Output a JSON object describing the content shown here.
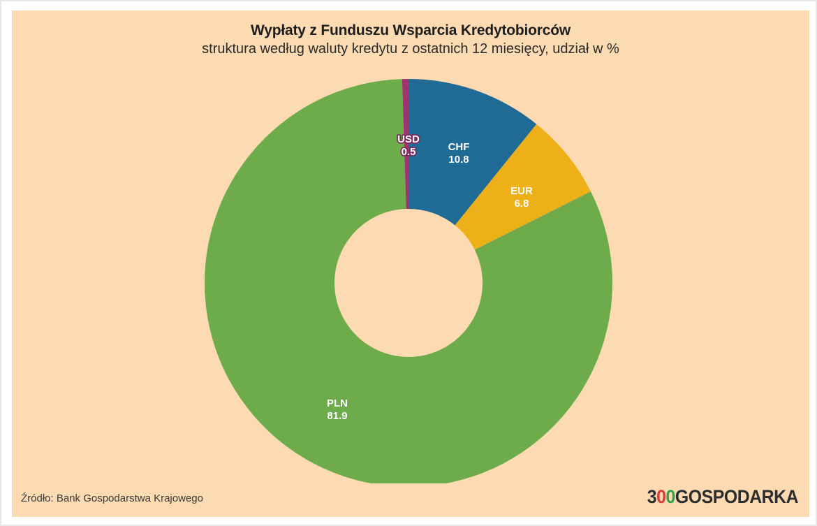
{
  "header": {
    "title": "Wypłaty z Funduszu Wsparcia Kredytobiorców",
    "subtitle": "struktura według waluty kredytu z ostatnich 12 miesięcy, udział w %"
  },
  "chart_data": {
    "type": "pie",
    "variant": "donut",
    "title": "Wypłaty z Funduszu Wsparcia Kredytobiorców",
    "subtitle": "struktura według waluty kredytu z ostatnich 12 miesięcy, udział w %",
    "unit": "%",
    "total": 100,
    "start_angle_deg": 0,
    "direction": "clockwise",
    "legend": "labels inside slices",
    "slices": [
      {
        "label": "CHF",
        "value": 10.8,
        "color": "#206a96"
      },
      {
        "label": "EUR",
        "value": 6.8,
        "color": "#eeb019"
      },
      {
        "label": "PLN",
        "value": 81.9,
        "color": "#6dab4b"
      },
      {
        "label": "USD",
        "value": 0.5,
        "color": "#9e3571",
        "label_stroke": "#802b5e"
      }
    ]
  },
  "theme": {
    "card_background": "#fcdbb3",
    "page_background": "#ffffff",
    "text_color": "#1d1d1d"
  },
  "footer": {
    "source": "Źródło: Bank Gospodarstwa Krajowego",
    "logo": {
      "digit3": "3",
      "zero_red": "0",
      "zero_green": "0",
      "word": "GOSPODARKA",
      "dark_color": "#2d2d2d",
      "red_color": "#da3a3a",
      "green_color": "#2fa24d"
    }
  }
}
